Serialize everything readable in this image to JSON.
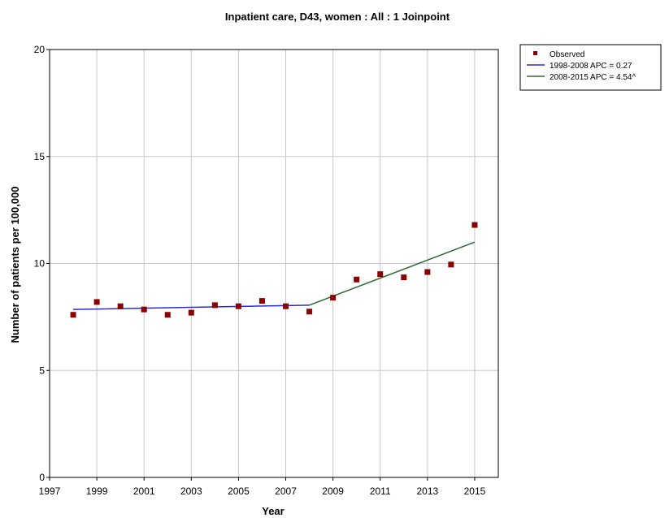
{
  "chart_data": {
    "type": "scatter",
    "title": "Inpatient care, D43, women : All : 1 Joinpoint",
    "xlabel": "Year",
    "ylabel": "Number of patients per 100,000",
    "xlim": [
      1997,
      2016
    ],
    "ylim": [
      0,
      20
    ],
    "xticks": [
      1997,
      1999,
      2001,
      2003,
      2005,
      2007,
      2009,
      2011,
      2013,
      2015
    ],
    "yticks": [
      0,
      5,
      10,
      15,
      20
    ],
    "grid": true,
    "legend_position": "top-right, outside plot",
    "colors": {
      "observed": "#8b0000",
      "segment1": "#2b2bd6",
      "segment2": "#2e6b2e",
      "grid": "#c8c8c8"
    },
    "series": [
      {
        "name": "Observed",
        "kind": "points",
        "x": [
          1998,
          1999,
          2000,
          2001,
          2002,
          2003,
          2004,
          2005,
          2006,
          2007,
          2008,
          2009,
          2010,
          2011,
          2012,
          2013,
          2014,
          2015
        ],
        "y": [
          7.6,
          8.2,
          8.0,
          7.85,
          7.6,
          7.7,
          8.05,
          8.0,
          8.25,
          8.0,
          7.75,
          8.4,
          9.25,
          9.5,
          9.35,
          9.6,
          9.95,
          11.8
        ]
      },
      {
        "name": "1998-2008 APC  = 0.27",
        "kind": "line",
        "x": [
          1998,
          2008
        ],
        "y": [
          7.85,
          8.05
        ]
      },
      {
        "name": "2008-2015 APC  = 4.54^",
        "kind": "line",
        "x": [
          2008,
          2015
        ],
        "y": [
          8.05,
          11.0
        ]
      }
    ]
  }
}
